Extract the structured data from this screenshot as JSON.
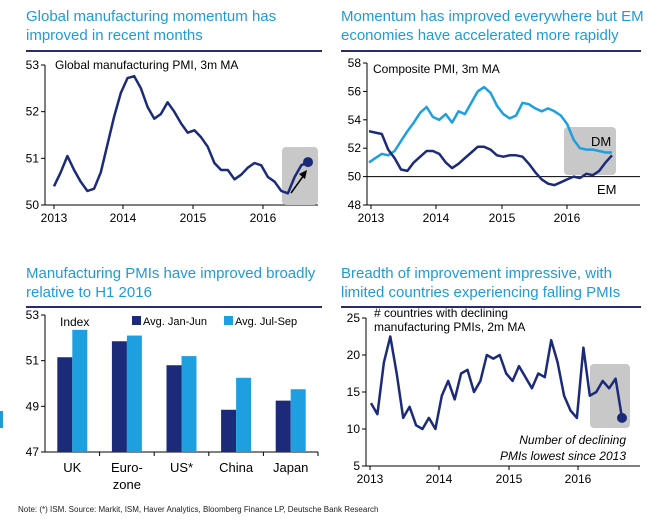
{
  "colors": {
    "navy": "#1c2a7a",
    "light_blue": "#1ea0e0",
    "title_blue": "#1f9bd7",
    "highlight": "#c8c8c8"
  },
  "panels": {
    "p1": {
      "title_l1": "Global manufacturing momentum has",
      "title_l2": "improved in recent months"
    },
    "p2": {
      "title_l1": "Momentum has improved everywhere but EM",
      "title_l2": "economies have accelerated more rapidly"
    },
    "p3": {
      "title_l1": "Manufacturing PMIs have improved broadly",
      "title_l2": "relative to H1 2016"
    },
    "p4": {
      "title_l1": "Breadth of improvement impressive, with",
      "title_l2": "limited countries experiencing falling PMIs"
    }
  },
  "note": "Note: (*) ISM. Source: Markit, ISM, Haver Analytics, Bloomberg Finance LP, Deutsche Bank Research",
  "chart_data": [
    {
      "type": "line",
      "annotation": "Global manufacturing PMI, 3m MA",
      "x_ticks": [
        "2013",
        "2014",
        "2015",
        "2016"
      ],
      "ylim": [
        50,
        53
      ],
      "y_ticks": [
        50,
        51,
        52,
        53
      ],
      "series": [
        {
          "values": [
            50.4,
            50.7,
            51.05,
            50.75,
            50.5,
            50.3,
            50.35,
            50.7,
            51.3,
            51.9,
            52.4,
            52.72,
            52.76,
            52.5,
            52.1,
            51.85,
            51.95,
            52.2,
            52.0,
            51.75,
            51.55,
            51.6,
            51.45,
            51.25,
            50.9,
            50.75,
            50.75,
            50.55,
            50.65,
            50.8,
            50.9,
            50.85,
            50.6,
            50.5,
            50.3,
            50.25,
            50.6,
            50.85,
            50.92
          ]
        }
      ],
      "highlight_end_value": 50.92
    },
    {
      "type": "line",
      "annotation": "Composite PMI, 3m MA",
      "x_ticks": [
        "2013",
        "2014",
        "2015",
        "2016"
      ],
      "ylim": [
        48,
        58
      ],
      "y_ticks": [
        48,
        50,
        52,
        54,
        56,
        58
      ],
      "series": [
        {
          "name": "DM",
          "values": [
            51.0,
            51.3,
            51.6,
            51.5,
            51.8,
            52.5,
            53.2,
            53.8,
            54.5,
            54.9,
            54.2,
            54.0,
            54.4,
            53.8,
            54.6,
            54.4,
            55.2,
            56.0,
            56.3,
            55.9,
            55.0,
            54.4,
            54.1,
            54.3,
            55.2,
            55.1,
            54.8,
            54.6,
            54.8,
            54.6,
            54.3,
            53.7,
            52.6,
            52.0,
            51.9,
            51.9,
            51.8,
            51.7,
            51.7
          ]
        },
        {
          "name": "EM",
          "values": [
            53.2,
            53.1,
            53.0,
            51.9,
            51.3,
            50.5,
            50.4,
            51.0,
            51.4,
            51.8,
            51.8,
            51.6,
            51.0,
            50.6,
            50.9,
            51.3,
            51.7,
            52.1,
            52.1,
            51.9,
            51.5,
            51.4,
            51.5,
            51.5,
            51.4,
            50.9,
            50.3,
            49.8,
            49.5,
            49.4,
            49.6,
            49.8,
            50.0,
            49.9,
            50.2,
            50.1,
            50.4,
            51.0,
            51.5
          ]
        }
      ]
    },
    {
      "type": "bar",
      "annotation": "Index",
      "categories": [
        "UK",
        "Euro-zone",
        "US*",
        "China",
        "Japan"
      ],
      "category_lines": [
        [
          "UK"
        ],
        [
          "Euro-",
          "zone"
        ],
        [
          "US*"
        ],
        [
          "China"
        ],
        [
          "Japan"
        ]
      ],
      "ylim": [
        47,
        53
      ],
      "y_ticks": [
        47,
        49,
        51,
        53
      ],
      "series": [
        {
          "name": "Avg. Jan-Jun",
          "values": [
            51.15,
            51.85,
            50.8,
            48.85,
            49.25
          ]
        },
        {
          "name": "Avg. Jul-Sep",
          "values": [
            52.35,
            52.1,
            51.2,
            50.25,
            49.75
          ]
        }
      ],
      "legend": "top-right"
    },
    {
      "type": "line",
      "annotation_l1": "# countries with declining",
      "annotation_l2": "manufacturing PMIs, 2m MA",
      "x_ticks": [
        "2013",
        "2014",
        "2015",
        "2016"
      ],
      "ylim": [
        5,
        25
      ],
      "y_ticks": [
        5,
        10,
        15,
        20,
        25
      ],
      "series": [
        {
          "values": [
            13.5,
            12.0,
            19.0,
            22.5,
            17.5,
            11.5,
            13.0,
            10.5,
            10.0,
            11.5,
            10.0,
            14.5,
            16.5,
            14.0,
            17.5,
            18.0,
            15.0,
            16.5,
            20.0,
            19.5,
            20.0,
            17.5,
            16.5,
            18.5,
            17.0,
            15.5,
            17.5,
            17.0,
            22.0,
            19.0,
            14.5,
            12.5,
            11.5,
            21.0,
            14.5,
            15.0,
            16.5,
            15.5,
            16.8,
            11.5
          ]
        }
      ],
      "annotation_text_l1": "Number of declining",
      "annotation_text_l2": "PMIs lowest since 2013",
      "highlight_end_value": 11.5
    }
  ]
}
